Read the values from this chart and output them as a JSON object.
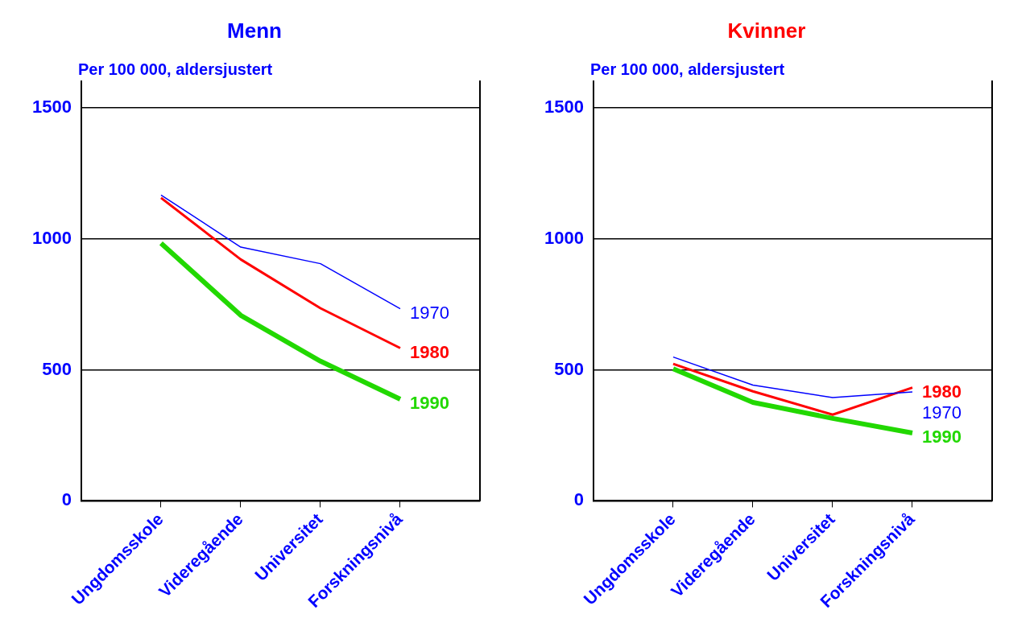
{
  "chart_data": [
    {
      "type": "line",
      "title": "Menn",
      "subtitle": "Per 100 000, aldersjustert",
      "categories": [
        "Ungdomsskole",
        "Videregående",
        "Universitet",
        "Forskningsnivå"
      ],
      "ylim": [
        0,
        1600
      ],
      "yticks": [
        0,
        500,
        1000,
        1500
      ],
      "grid": "y",
      "series": [
        {
          "name": "1970",
          "color": "#0000ff",
          "values": [
            1167,
            968,
            905,
            733
          ]
        },
        {
          "name": "1980",
          "color": "#ff0000",
          "values": [
            1156,
            921,
            735,
            583
          ]
        },
        {
          "name": "1990",
          "color": "#22d800",
          "values": [
            983,
            708,
            533,
            388
          ]
        }
      ]
    },
    {
      "type": "line",
      "title": "Kvinner",
      "subtitle": "Per 100 000, aldersjustert",
      "categories": [
        "Ungdomsskole",
        "Videregående",
        "Universitet",
        "Forskningsnivå"
      ],
      "ylim": [
        0,
        1600
      ],
      "yticks": [
        0,
        500,
        1000,
        1500
      ],
      "grid": "y",
      "series": [
        {
          "name": "1970",
          "color": "#0000ff",
          "values": [
            549,
            442,
            394,
            416
          ]
        },
        {
          "name": "1980",
          "color": "#ff0000",
          "values": [
            523,
            418,
            329,
            432
          ]
        },
        {
          "name": "1990",
          "color": "#22d800",
          "values": [
            504,
            376,
            315,
            259
          ]
        }
      ]
    }
  ]
}
